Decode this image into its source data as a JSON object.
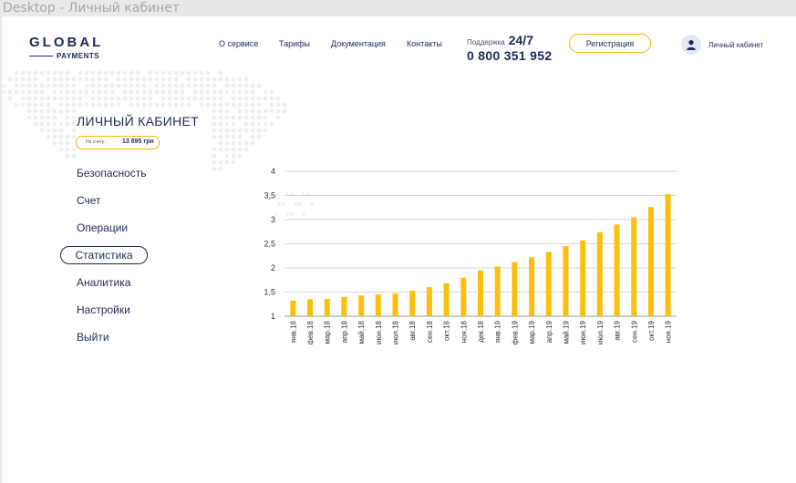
{
  "window": {
    "title": "Desktop - Личный кабинет"
  },
  "header": {
    "logo": {
      "top": "GLOBAL",
      "bottom": "PAYMENTS"
    },
    "nav": [
      {
        "label": "О сервисе"
      },
      {
        "label": "Тарифы"
      },
      {
        "label": "Документация"
      },
      {
        "label": "Контакты"
      }
    ],
    "support": {
      "label": "Поддержка",
      "hours": "24/7",
      "phone": "0 800 351 952"
    },
    "register_label": "Регистрация",
    "cabinet_label": "Личный кабинет"
  },
  "sidebar": {
    "title": "ЛИЧНЫЙ КАБИНЕТ",
    "balance": {
      "label": "На счету:",
      "value": "13 895 грн"
    },
    "items": [
      {
        "label": "Безопасность",
        "active": false
      },
      {
        "label": "Счет",
        "active": false
      },
      {
        "label": "Операции",
        "active": false
      },
      {
        "label": "Статистика",
        "active": true
      },
      {
        "label": "Аналитика",
        "active": false
      },
      {
        "label": "Настройки",
        "active": false
      },
      {
        "label": "Выйти",
        "active": false
      }
    ]
  },
  "colors": {
    "navy": "#1d2a54",
    "accent": "#f2b90a",
    "bar": "#fbc00b"
  },
  "chart_data": {
    "type": "bar",
    "categories": [
      "янв.18",
      "фев.18",
      "мар.18",
      "апр.18",
      "май.18",
      "июн.18",
      "июл.18",
      "авг.18",
      "сен.18",
      "окт.18",
      "ноя.18",
      "дек.18",
      "янв.19",
      "фев.19",
      "мар.19",
      "апр.19",
      "май.19",
      "июн.19",
      "июл.19",
      "авг.19",
      "сен.19",
      "окт.19",
      "ноя.19"
    ],
    "values": [
      1.32,
      1.35,
      1.36,
      1.4,
      1.43,
      1.45,
      1.47,
      1.53,
      1.6,
      1.68,
      1.8,
      1.95,
      2.03,
      2.12,
      2.22,
      2.33,
      2.45,
      2.57,
      2.74,
      2.9,
      3.05,
      3.26,
      3.53
    ],
    "yticks": [
      "1",
      "1,5",
      "2",
      "2,5",
      "3",
      "3,5",
      "4"
    ],
    "ylim": [
      1,
      4
    ],
    "grid": true
  }
}
